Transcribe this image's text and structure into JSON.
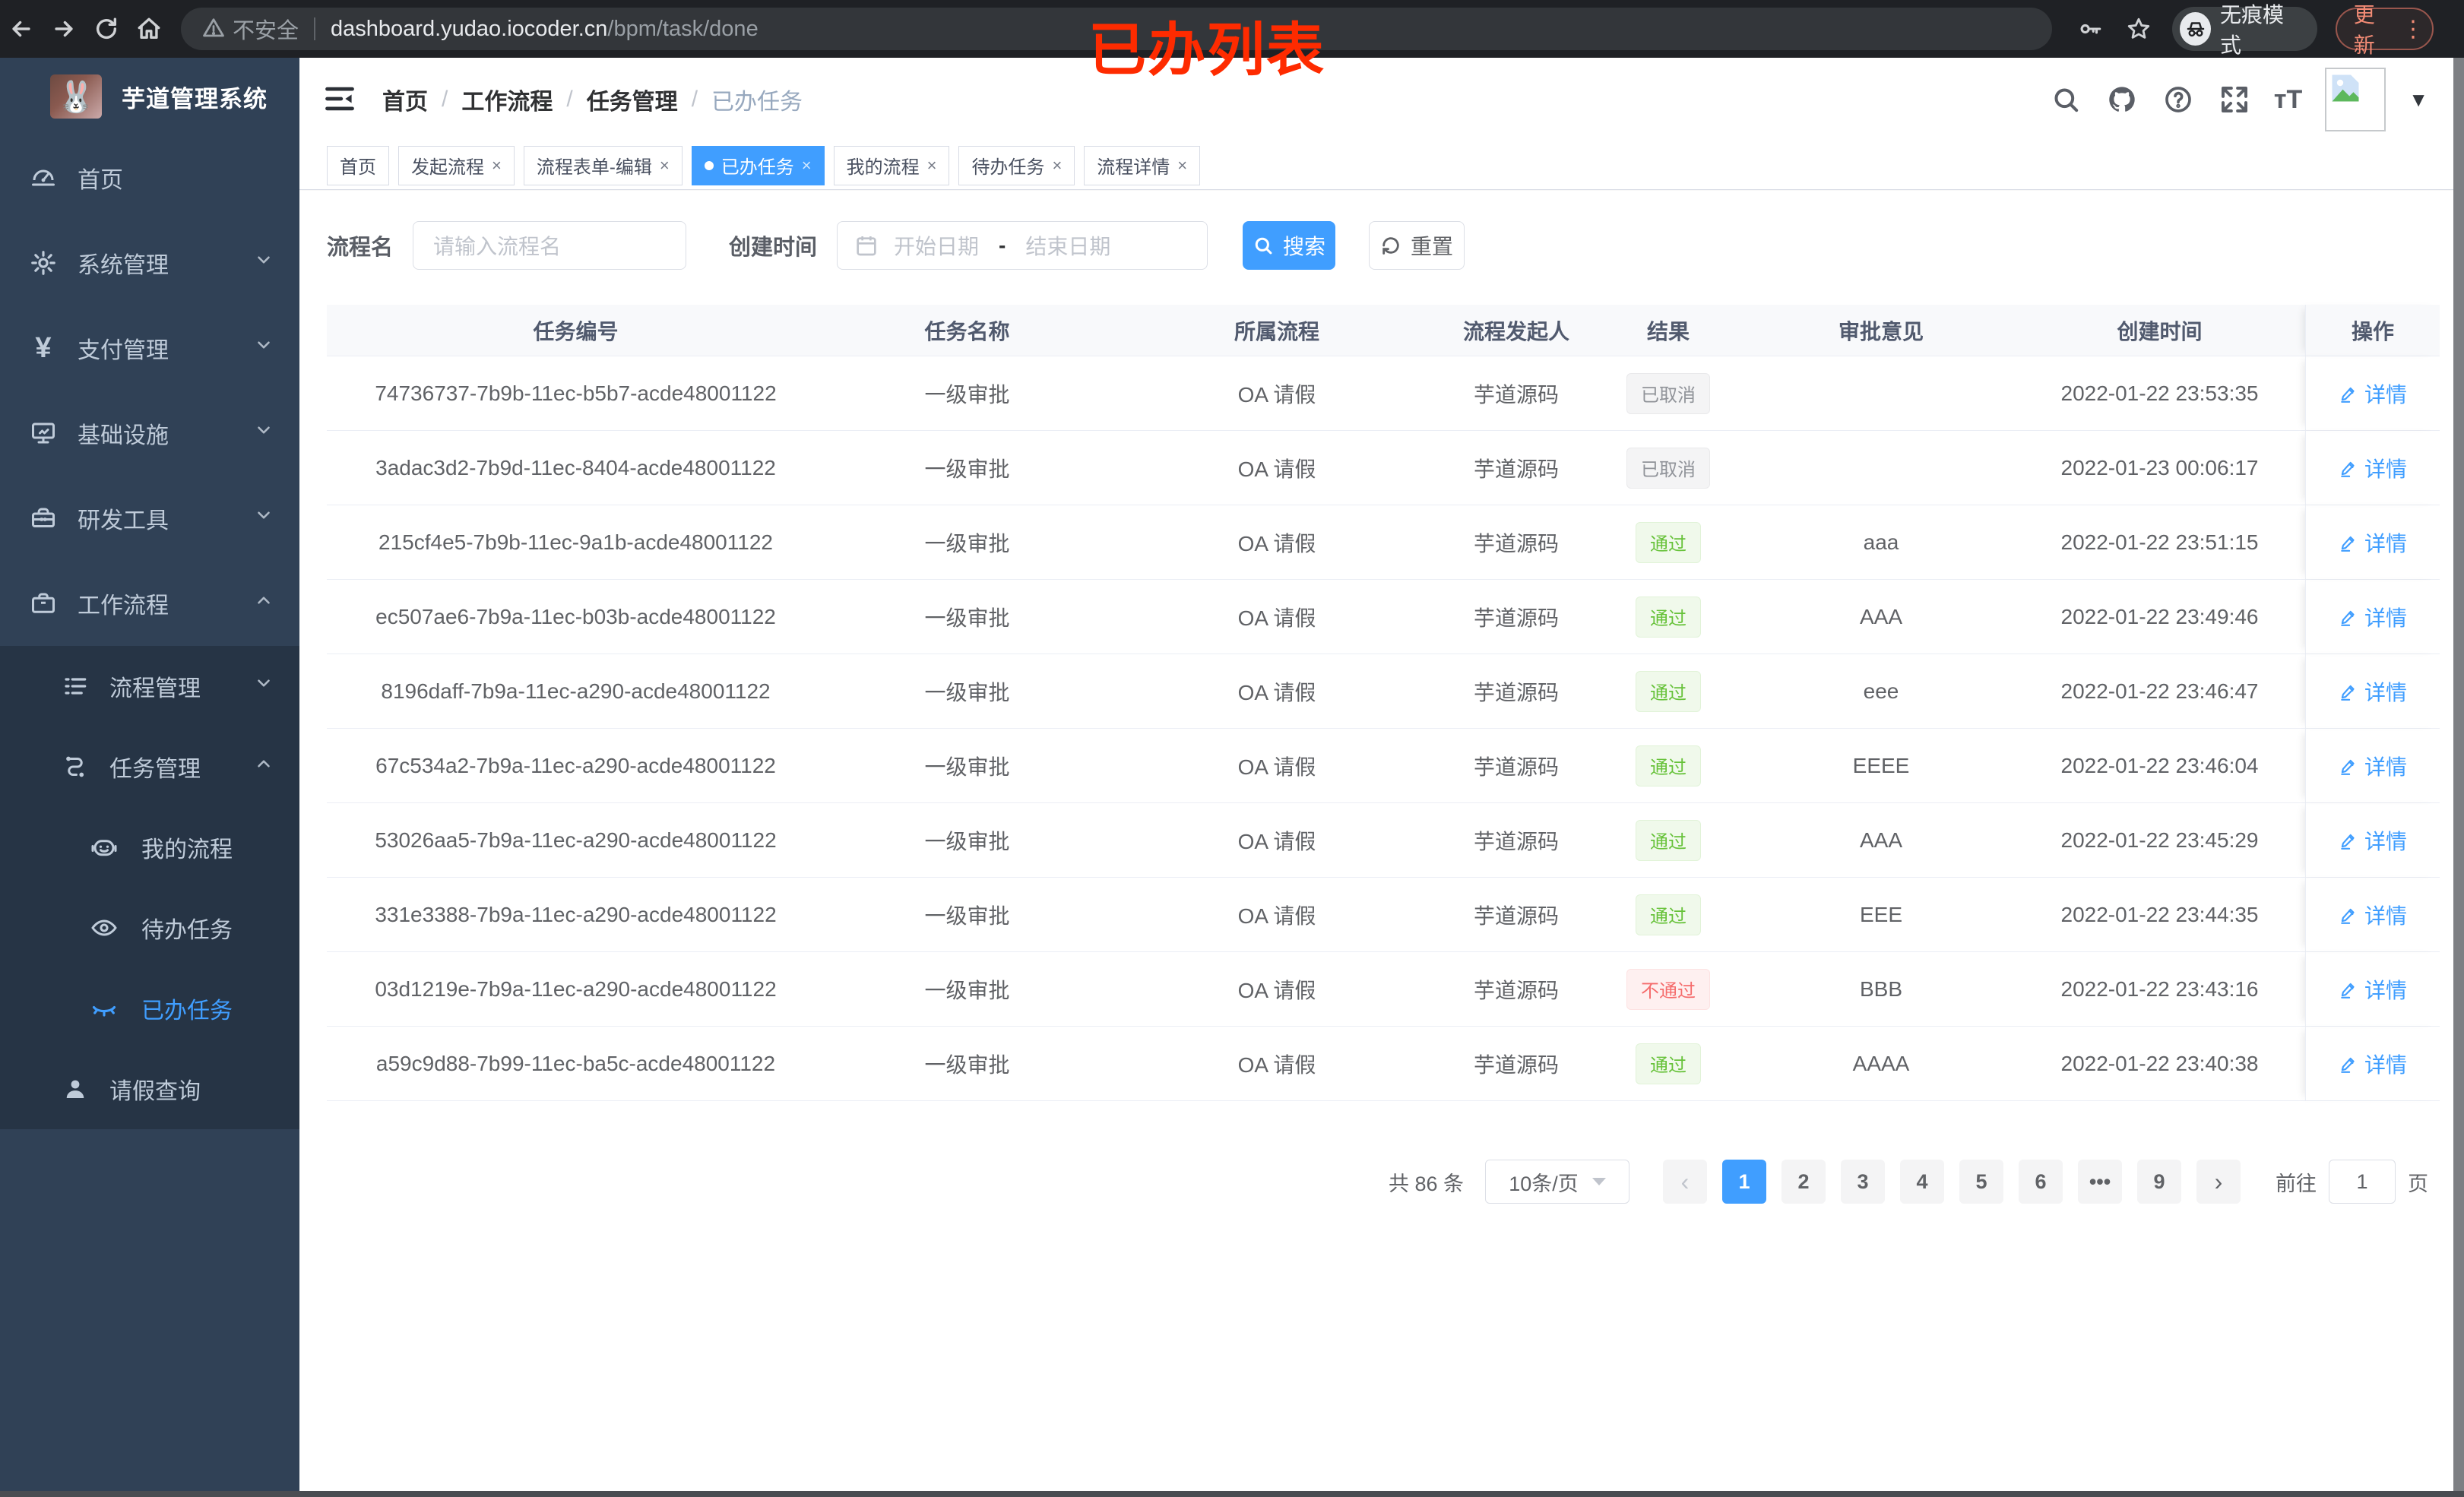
{
  "browser": {
    "security_label": "不安全",
    "url_host": "dashboard.yudao.iocoder.cn",
    "url_path": "/bpm/task/done",
    "incognito_label": "无痕模式",
    "update_label": "更新"
  },
  "annotation": "已办列表",
  "sidebar": {
    "title": "芋道管理系统",
    "items": [
      {
        "name": "home",
        "label": "首页",
        "icon": "dashboard-icon",
        "level": 1
      },
      {
        "name": "system-management",
        "label": "系统管理",
        "icon": "gear-icon",
        "level": 1,
        "chevron": "down"
      },
      {
        "name": "payment-management",
        "label": "支付管理",
        "icon": "yen-icon",
        "level": 1,
        "chevron": "down"
      },
      {
        "name": "infrastructure",
        "label": "基础设施",
        "icon": "monitor-icon",
        "level": 1,
        "chevron": "down"
      },
      {
        "name": "dev-tools",
        "label": "研发工具",
        "icon": "toolbox-icon",
        "level": 1,
        "chevron": "down"
      },
      {
        "name": "workflow",
        "label": "工作流程",
        "icon": "briefcase-icon",
        "level": 1,
        "chevron": "up"
      },
      {
        "name": "process-management",
        "label": "流程管理",
        "icon": "list-icon",
        "level": 2,
        "chevron": "down",
        "sub": true
      },
      {
        "name": "task-management",
        "label": "任务管理",
        "icon": "flow-icon",
        "level": 2,
        "chevron": "up",
        "sub": true
      },
      {
        "name": "my-process",
        "label": "我的流程",
        "icon": "robot-icon",
        "level": 3,
        "sub": true
      },
      {
        "name": "todo-tasks",
        "label": "待办任务",
        "icon": "eye-icon",
        "level": 3,
        "sub": true
      },
      {
        "name": "done-tasks",
        "label": "已办任务",
        "icon": "eye-closed-icon",
        "level": 3,
        "sub": true,
        "active": true
      },
      {
        "name": "leave-query",
        "label": "请假查询",
        "icon": "user-icon",
        "level": 2,
        "sub": true
      }
    ]
  },
  "breadcrumb": [
    "首页",
    "工作流程",
    "任务管理",
    "已办任务"
  ],
  "tabs": [
    {
      "name": "home",
      "label": "首页",
      "closable": false,
      "active": false
    },
    {
      "name": "start-process",
      "label": "发起流程",
      "closable": true,
      "active": false
    },
    {
      "name": "process-form-edit",
      "label": "流程表单-编辑",
      "closable": true,
      "active": false
    },
    {
      "name": "done-tasks",
      "label": "已办任务",
      "closable": true,
      "active": true
    },
    {
      "name": "my-process",
      "label": "我的流程",
      "closable": true,
      "active": false
    },
    {
      "name": "todo-tasks",
      "label": "待办任务",
      "closable": true,
      "active": false
    },
    {
      "name": "process-detail",
      "label": "流程详情",
      "closable": true,
      "active": false
    }
  ],
  "filters": {
    "name_label": "流程名",
    "name_placeholder": "请输入流程名",
    "time_label": "创建时间",
    "start_placeholder": "开始日期",
    "range_separator": "-",
    "end_placeholder": "结束日期",
    "search_label": "搜索",
    "reset_label": "重置"
  },
  "table": {
    "columns": [
      "任务编号",
      "任务名称",
      "所属流程",
      "流程发起人",
      "结果",
      "审批意见",
      "创建时间",
      "操作"
    ],
    "detail_label": "详情",
    "rows": [
      {
        "id": "74736737-7b9b-11ec-b5b7-acde48001122",
        "name": "一级审批",
        "process": "OA 请假",
        "starter": "芋道源码",
        "result": "已取消",
        "result_type": "info",
        "comment": "",
        "created": "2022-01-22 23:53:35"
      },
      {
        "id": "3adac3d2-7b9d-11ec-8404-acde48001122",
        "name": "一级审批",
        "process": "OA 请假",
        "starter": "芋道源码",
        "result": "已取消",
        "result_type": "info",
        "comment": "",
        "created": "2022-01-23 00:06:17"
      },
      {
        "id": "215cf4e5-7b9b-11ec-9a1b-acde48001122",
        "name": "一级审批",
        "process": "OA 请假",
        "starter": "芋道源码",
        "result": "通过",
        "result_type": "success",
        "comment": "aaa",
        "created": "2022-01-22 23:51:15"
      },
      {
        "id": "ec507ae6-7b9a-11ec-b03b-acde48001122",
        "name": "一级审批",
        "process": "OA 请假",
        "starter": "芋道源码",
        "result": "通过",
        "result_type": "success",
        "comment": "AAA",
        "created": "2022-01-22 23:49:46"
      },
      {
        "id": "8196daff-7b9a-11ec-a290-acde48001122",
        "name": "一级审批",
        "process": "OA 请假",
        "starter": "芋道源码",
        "result": "通过",
        "result_type": "success",
        "comment": "eee",
        "created": "2022-01-22 23:46:47"
      },
      {
        "id": "67c534a2-7b9a-11ec-a290-acde48001122",
        "name": "一级审批",
        "process": "OA 请假",
        "starter": "芋道源码",
        "result": "通过",
        "result_type": "success",
        "comment": "EEEE",
        "created": "2022-01-22 23:46:04"
      },
      {
        "id": "53026aa5-7b9a-11ec-a290-acde48001122",
        "name": "一级审批",
        "process": "OA 请假",
        "starter": "芋道源码",
        "result": "通过",
        "result_type": "success",
        "comment": "AAA",
        "created": "2022-01-22 23:45:29"
      },
      {
        "id": "331e3388-7b9a-11ec-a290-acde48001122",
        "name": "一级审批",
        "process": "OA 请假",
        "starter": "芋道源码",
        "result": "通过",
        "result_type": "success",
        "comment": "EEE",
        "created": "2022-01-22 23:44:35"
      },
      {
        "id": "03d1219e-7b9a-11ec-a290-acde48001122",
        "name": "一级审批",
        "process": "OA 请假",
        "starter": "芋道源码",
        "result": "不通过",
        "result_type": "danger",
        "comment": "BBB",
        "created": "2022-01-22 23:43:16"
      },
      {
        "id": "a59c9d88-7b99-11ec-ba5c-acde48001122",
        "name": "一级审批",
        "process": "OA 请假",
        "starter": "芋道源码",
        "result": "通过",
        "result_type": "success",
        "comment": "AAAA",
        "created": "2022-01-22 23:40:38"
      }
    ]
  },
  "pagination": {
    "total_label": "共 86 条",
    "page_size_label": "10条/页",
    "prev_label": "‹",
    "next_label": "›",
    "pages": [
      {
        "label": "1",
        "active": true
      },
      {
        "label": "2",
        "active": false
      },
      {
        "label": "3",
        "active": false
      },
      {
        "label": "4",
        "active": false
      },
      {
        "label": "5",
        "active": false
      },
      {
        "label": "6",
        "active": false
      },
      {
        "label": "•••",
        "active": false
      },
      {
        "label": "9",
        "active": false
      }
    ],
    "goto_label": "前往",
    "goto_value": "1",
    "page_unit_label": "页"
  }
}
